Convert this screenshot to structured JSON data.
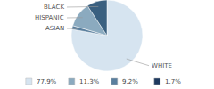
{
  "chart_data": {
    "type": "pie",
    "categories": [
      "WHITE",
      "ASIAN",
      "HISPANIC",
      "BLACK"
    ],
    "values": [
      77.9,
      1.7,
      11.3,
      9.2
    ],
    "colors": [
      "#d6e4f0",
      "#5a7f9e",
      "#8baabf",
      "#3a6080"
    ],
    "legend": "bottom",
    "legend_entries": [
      {
        "value": 77.9,
        "label": "77.9%",
        "color": "#d6e4f0"
      },
      {
        "value": 11.3,
        "label": "11.3%",
        "color": "#8baabf"
      },
      {
        "value": 9.2,
        "label": "9.2%",
        "color": "#5a7f9e"
      },
      {
        "value": 1.7,
        "label": "1.7%",
        "color": "#1e3a5f"
      }
    ]
  }
}
